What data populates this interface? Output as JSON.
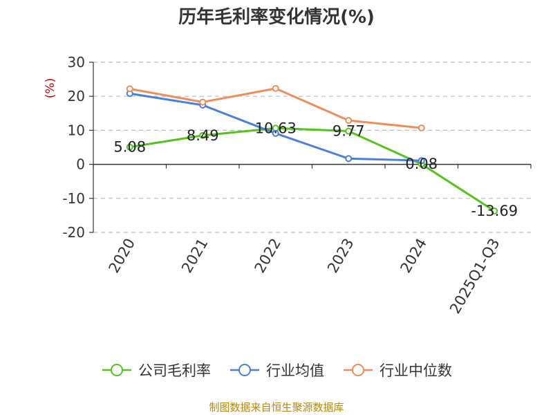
{
  "title": "历年毛利率变化情况(%)",
  "source": "制图数据来自恒生聚源数据库",
  "chart_data": {
    "type": "line",
    "title": "历年毛利率变化情况(%)",
    "ylabel": "(%)",
    "ylim": [
      -20,
      30
    ],
    "yticks": [
      30,
      20,
      10,
      0,
      -10,
      -20
    ],
    "categories": [
      "2020",
      "2021",
      "2022",
      "2023",
      "2024",
      "2025Q1-Q3"
    ],
    "grid": true,
    "legend_position": "bottom",
    "series": [
      {
        "name": "公司毛利率",
        "color": "#52c41a",
        "values": [
          5.08,
          8.49,
          10.63,
          9.77,
          0.08,
          -13.69
        ],
        "labels": [
          "5.08",
          "8.49",
          "10.63",
          "9.77",
          "0.08",
          "-13.69"
        ]
      },
      {
        "name": "行业均值",
        "color": "#4a7fdb",
        "values": [
          20.8,
          17.4,
          9.1,
          1.7,
          1.1,
          null
        ]
      },
      {
        "name": "行业中位数",
        "color": "#f08c5a",
        "values": [
          22.2,
          18.3,
          22.3,
          12.9,
          10.7,
          null
        ]
      }
    ]
  }
}
